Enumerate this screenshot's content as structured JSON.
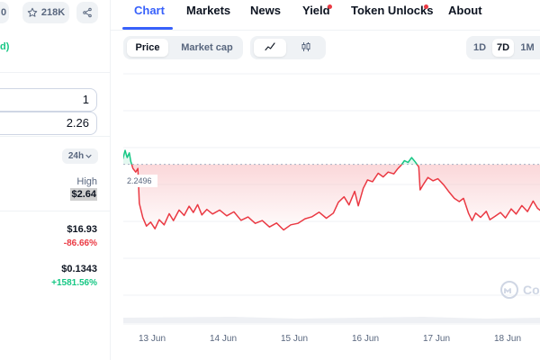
{
  "header": {
    "cut_chip": "0",
    "watchlist_count": "218K"
  },
  "stats": {
    "tag_partial": "d)",
    "converter_values": [
      "1",
      "2.26"
    ],
    "range_select": "24h",
    "high_label": "High",
    "high_value": "$2.64",
    "rows": [
      {
        "price": "$16.93",
        "pct": "-86.66%",
        "direction": "down"
      },
      {
        "price": "$0.1343",
        "pct": "+1581.56%",
        "direction": "up"
      }
    ]
  },
  "tabs": [
    {
      "label": "Chart",
      "active": true,
      "dot": false
    },
    {
      "label": "Markets",
      "active": false,
      "dot": false
    },
    {
      "label": "News",
      "active": false,
      "dot": false
    },
    {
      "label": "Yield",
      "active": false,
      "dot": true
    },
    {
      "label": "Token Unlocks",
      "active": false,
      "dot": true
    },
    {
      "label": "About",
      "active": false,
      "dot": false
    }
  ],
  "toolbar": {
    "metric_tabs": [
      "Price",
      "Market cap"
    ],
    "metric_active": "Price",
    "chart_type_icons": [
      "line-chart-icon",
      "candlestick-icon"
    ],
    "ranges": [
      "1D",
      "7D",
      "1M"
    ],
    "range_active": "7D"
  },
  "chart_data": {
    "type": "line",
    "reference_label": "2.2496",
    "reference_value": 2.2496,
    "x_labels": [
      "13 Jun",
      "14 Jun",
      "15 Jun",
      "16 Jun",
      "17 Jun",
      "18 Jun"
    ],
    "x_range": [
      0,
      6.05
    ],
    "ylim": [
      1.75,
      2.55
    ],
    "watermark": "Coi",
    "colors": {
      "up": "#16c784",
      "down": "#ea3943",
      "fill_down": "#f9c7ca",
      "ref": "#a6b0c3"
    },
    "values": [
      [
        0.0,
        2.249
      ],
      [
        0.05,
        2.262
      ],
      [
        0.09,
        2.268
      ],
      [
        0.12,
        2.296
      ],
      [
        0.15,
        2.272
      ],
      [
        0.18,
        2.288
      ],
      [
        0.2,
        2.26
      ],
      [
        0.23,
        2.236
      ],
      [
        0.27,
        2.224
      ],
      [
        0.3,
        2.236
      ],
      [
        0.32,
        2.12
      ],
      [
        0.37,
        2.073
      ],
      [
        0.42,
        2.045
      ],
      [
        0.48,
        2.058
      ],
      [
        0.54,
        2.036
      ],
      [
        0.6,
        2.066
      ],
      [
        0.67,
        2.049
      ],
      [
        0.74,
        2.086
      ],
      [
        0.8,
        2.063
      ],
      [
        0.88,
        2.098
      ],
      [
        0.95,
        2.08
      ],
      [
        1.02,
        2.111
      ],
      [
        1.08,
        2.09
      ],
      [
        1.14,
        2.116
      ],
      [
        1.2,
        2.082
      ],
      [
        1.27,
        2.1
      ],
      [
        1.35,
        2.085
      ],
      [
        1.45,
        2.098
      ],
      [
        1.55,
        2.079
      ],
      [
        1.65,
        2.092
      ],
      [
        1.75,
        2.064
      ],
      [
        1.85,
        2.075
      ],
      [
        1.95,
        2.054
      ],
      [
        2.05,
        2.063
      ],
      [
        2.15,
        2.042
      ],
      [
        2.25,
        2.055
      ],
      [
        2.35,
        2.032
      ],
      [
        2.45,
        2.049
      ],
      [
        2.55,
        2.054
      ],
      [
        2.65,
        2.069
      ],
      [
        2.75,
        2.076
      ],
      [
        2.85,
        2.091
      ],
      [
        2.95,
        2.071
      ],
      [
        3.05,
        2.088
      ],
      [
        3.12,
        2.124
      ],
      [
        3.2,
        2.142
      ],
      [
        3.27,
        2.115
      ],
      [
        3.35,
        2.16
      ],
      [
        3.4,
        2.112
      ],
      [
        3.47,
        2.17
      ],
      [
        3.53,
        2.198
      ],
      [
        3.6,
        2.192
      ],
      [
        3.68,
        2.22
      ],
      [
        3.75,
        2.208
      ],
      [
        3.82,
        2.224
      ],
      [
        3.9,
        2.218
      ],
      [
        3.95,
        2.234
      ],
      [
        4.0,
        2.246
      ],
      [
        4.05,
        2.262
      ],
      [
        4.1,
        2.256
      ],
      [
        4.15,
        2.272
      ],
      [
        4.2,
        2.258
      ],
      [
        4.25,
        2.241
      ],
      [
        4.27,
        2.165
      ],
      [
        4.32,
        2.185
      ],
      [
        4.38,
        2.206
      ],
      [
        4.45,
        2.195
      ],
      [
        4.52,
        2.202
      ],
      [
        4.6,
        2.182
      ],
      [
        4.67,
        2.16
      ],
      [
        4.75,
        2.137
      ],
      [
        4.82,
        2.126
      ],
      [
        4.88,
        2.137
      ],
      [
        4.95,
        2.088
      ],
      [
        5.0,
        2.063
      ],
      [
        5.05,
        2.088
      ],
      [
        5.12,
        2.074
      ],
      [
        5.2,
        2.094
      ],
      [
        5.25,
        2.066
      ],
      [
        5.32,
        2.077
      ],
      [
        5.4,
        2.09
      ],
      [
        5.47,
        2.072
      ],
      [
        5.55,
        2.102
      ],
      [
        5.62,
        2.085
      ],
      [
        5.7,
        2.113
      ],
      [
        5.78,
        2.093
      ],
      [
        5.86,
        2.128
      ],
      [
        5.92,
        2.104
      ],
      [
        5.98,
        2.093
      ],
      [
        6.05,
        2.098
      ]
    ]
  }
}
